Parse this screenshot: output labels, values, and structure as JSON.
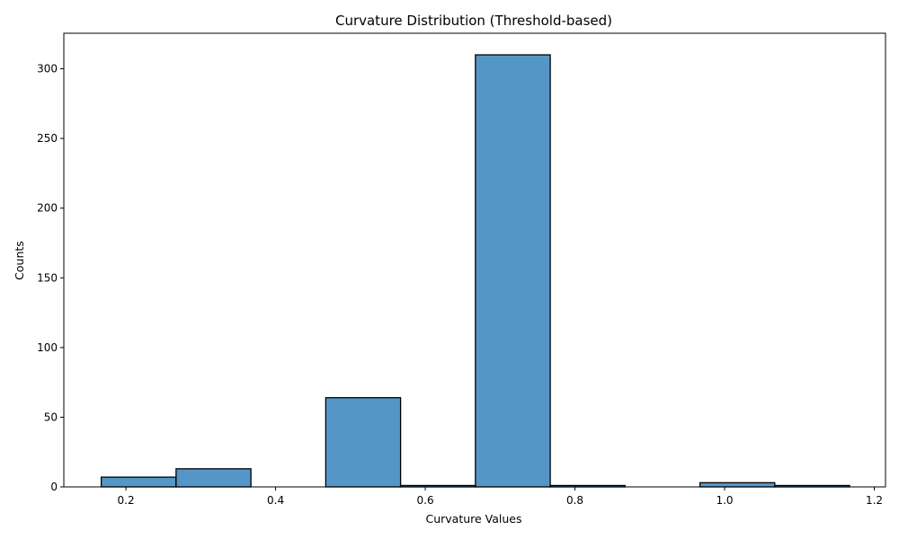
{
  "chart_data": {
    "type": "bar",
    "title": "Curvature Distribution (Threshold-based)",
    "xlabel": "Curvature Values",
    "ylabel": "Counts",
    "xlim": [
      0.117,
      1.215
    ],
    "ylim": [
      0,
      325.5
    ],
    "xticks": [
      {
        "value": 0.2,
        "label": "0.2"
      },
      {
        "value": 0.4,
        "label": "0.4"
      },
      {
        "value": 0.6,
        "label": "0.6"
      },
      {
        "value": 0.8,
        "label": "0.8"
      },
      {
        "value": 1.0,
        "label": "1.0"
      },
      {
        "value": 1.2,
        "label": "1.2"
      }
    ],
    "yticks": [
      {
        "value": 0,
        "label": "0"
      },
      {
        "value": 50,
        "label": "50"
      },
      {
        "value": 100,
        "label": "100"
      },
      {
        "value": 150,
        "label": "150"
      },
      {
        "value": 200,
        "label": "200"
      },
      {
        "value": 250,
        "label": "250"
      },
      {
        "value": 300,
        "label": "300"
      }
    ],
    "grid": false,
    "bar_color": "#5497c7",
    "edge_color": "#000000",
    "bins": [
      {
        "x0": 0.167,
        "x1": 0.267,
        "count": 7
      },
      {
        "x0": 0.267,
        "x1": 0.367,
        "count": 13
      },
      {
        "x0": 0.367,
        "x1": 0.467,
        "count": 0
      },
      {
        "x0": 0.467,
        "x1": 0.567,
        "count": 64
      },
      {
        "x0": 0.567,
        "x1": 0.667,
        "count": 1
      },
      {
        "x0": 0.667,
        "x1": 0.767,
        "count": 310
      },
      {
        "x0": 0.767,
        "x1": 0.867,
        "count": 1
      },
      {
        "x0": 0.867,
        "x1": 0.967,
        "count": 0
      },
      {
        "x0": 0.967,
        "x1": 1.067,
        "count": 3
      },
      {
        "x0": 1.067,
        "x1": 1.167,
        "count": 1
      }
    ]
  }
}
